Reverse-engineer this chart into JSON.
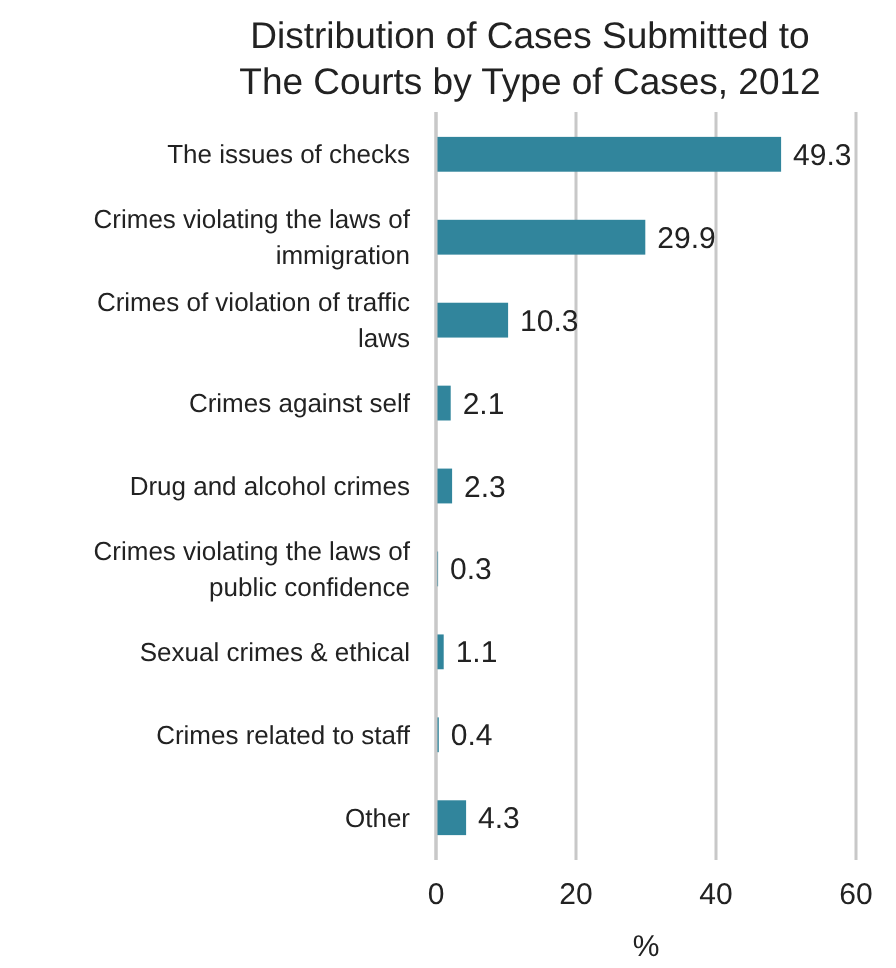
{
  "chart_data": {
    "type": "bar",
    "orientation": "horizontal",
    "title": "Distribution of Cases Submitted to The Courts by Type of Cases, 2012",
    "categories": [
      "The issues of checks",
      "Crimes violating the laws of immigration",
      "Crimes of violation of traffic laws",
      "Crimes against self",
      "Drug and alcohol crimes",
      "Crimes violating the laws of public confidence",
      "Sexual crimes & ethical",
      "Crimes related to staff",
      "Other"
    ],
    "values": [
      49.3,
      29.9,
      10.3,
      2.1,
      2.3,
      0.3,
      1.1,
      0.4,
      4.3
    ],
    "color": "#31859c",
    "xlim": [
      0,
      60
    ],
    "xticks": [
      0,
      20,
      40,
      60
    ],
    "xlabel": "%",
    "grid": "x",
    "data_labels": true
  }
}
